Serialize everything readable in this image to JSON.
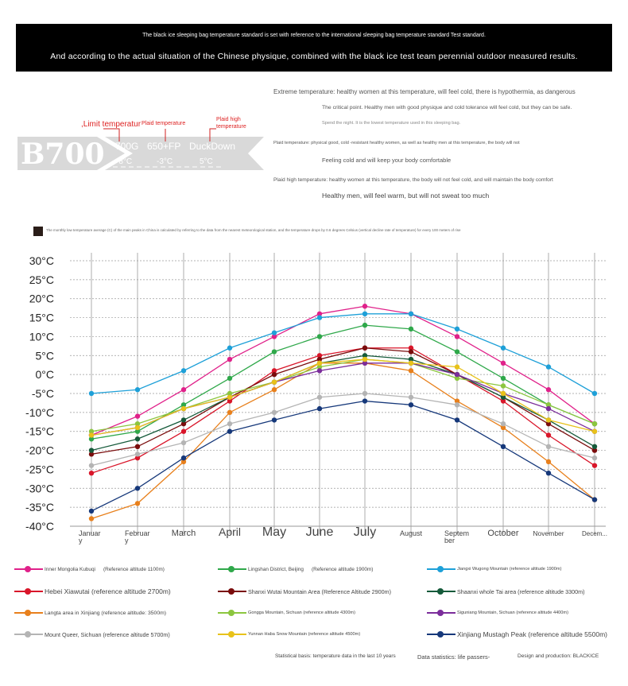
{
  "banner": {
    "line1": "The black ice sleeping bag temperature standard is set with reference to the international sleeping bag temperature standard Test standard.",
    "line2": "And according to the actual situation of the Chinese physique, combined with the black ice test team perennial outdoor measured results."
  },
  "product": {
    "model": "B700",
    "fill": "700G",
    "fill_power": "650+FP",
    "material": "DuckDown",
    "limit_label": ",Limit temperatur",
    "plaid_label": "Plaid temperature",
    "plaid_high_label": "Plaid high temperature",
    "limit_temp": "-8°C",
    "plaid_temp": "-3°C",
    "plaid_high_temp": "5°C",
    "accent_color": "#d22222"
  },
  "descriptions": {
    "extreme_1": "Extreme temperature: healthy women at this temperature, will feel cold, there is hypothermia, as dangerous",
    "extreme_2": "The critical point. Healthy men with good physique and cold tolerance will feel cold, but they can be safe.",
    "extreme_3": "Spend the night. It is the lowest temperature used in this sleeping bag.",
    "plaid_1": "Plaid temperature: physical good, cold -resistant healthy women, as well as healthy men at this temperature, the body will not",
    "plaid_2": "Feeling cold and will keep your body comfortable",
    "high_1": "Plaid high temperature: healthy women at this temperature, the body will not feel cold, and will maintain the body comfort",
    "high_2": "Healthy men, will feel warm, but will not sweat too much"
  },
  "note": "The monthly low temperature average (C) of the main peaks in China is calculated by referring to the data from the nearest meteorological station, and the temperature drops by 0.6 degrees Celsius (vertical decline rate of temperature) for every 100 meters of rise",
  "chart_data": {
    "type": "line",
    "categories": [
      "Januar y",
      "Februar y",
      "March",
      "April",
      "May",
      "June",
      "July",
      "August",
      "Septem ber",
      "October",
      "November",
      "Decem..."
    ],
    "yticks": [
      "30°C",
      "25°C",
      "20°C",
      "15°C",
      "10°C",
      "5°C",
      "0°C",
      "-5°C",
      "-10°C",
      "-15°C",
      "-20°C",
      "-25°C",
      "-30°C",
      "-35°C",
      "-40°C"
    ],
    "ylim": [
      -40,
      30
    ],
    "grid": true,
    "legend_position": "bottom",
    "series": [
      {
        "name": "Inner Mongolia Kubuqi",
        "alt": "(Reference altitude 1100m)",
        "color": "#e0218a",
        "values": [
          -16,
          -11,
          -4,
          4,
          10,
          16,
          18,
          16,
          10,
          3,
          -4,
          -13
        ]
      },
      {
        "name": "Lingshan District, Beijing",
        "alt": "(Reference altitude 1900m)",
        "color": "#2fa84a",
        "values": [
          -17,
          -15,
          -8,
          -1,
          6,
          10,
          13,
          12,
          6,
          -1,
          -8,
          -13
        ]
      },
      {
        "name": "Jiangxi Wugong Mountain (reference altitude 1900m)",
        "alt": "",
        "color": "#1ea0d8",
        "values": [
          -5,
          -4,
          1,
          7,
          11,
          15,
          16,
          16,
          12,
          7,
          2,
          -5
        ]
      },
      {
        "name": "Hebei Xiawutai (reference altitude 2700m)",
        "alt": "",
        "color": "#d9162a",
        "values": [
          -26,
          -22,
          -15,
          -7,
          1,
          5,
          7,
          7,
          0,
          -7,
          -16,
          -24
        ]
      },
      {
        "name": "Shanxi Wutai Mountain Area (Reference Altitude 2900m)",
        "alt": "",
        "color": "#7a0c0c",
        "values": [
          -21,
          -19,
          -13,
          -6,
          0,
          4,
          7,
          6,
          0,
          -6,
          -13,
          -20
        ]
      },
      {
        "name": "Shaanxi whole Tai area (reference altitude 3300m)",
        "alt": "",
        "color": "#155a3a",
        "values": [
          -20,
          -17,
          -12,
          -6,
          -2,
          3,
          5,
          4,
          0,
          -6,
          -12,
          -19
        ]
      },
      {
        "name": "Langta area in Xinjiang (reference altitude: 3500m)",
        "alt": "",
        "color": "#e8801c",
        "values": [
          -38,
          -34,
          -23,
          -10,
          -4,
          3,
          3,
          1,
          -7,
          -14,
          -23,
          -33
        ]
      },
      {
        "name": "Gongga Mountain, Sichuan (reference altitude 4300m)",
        "alt": "",
        "color": "#8cc63f",
        "values": [
          -15,
          -13,
          -9,
          -5,
          -2,
          2,
          4,
          3,
          -1,
          -3,
          -8,
          -13
        ]
      },
      {
        "name": "Siguniang Mountain, Sichuan (reference altitude 4400m)",
        "alt": "",
        "color": "#7b2d9b",
        "values": [
          -16,
          -14,
          -9,
          -6,
          -2,
          1,
          3,
          3,
          0,
          -5,
          -9,
          -15
        ]
      },
      {
        "name": "Mount Queer, Sichuan (reference altitude 5700m)",
        "alt": "",
        "color": "#b4b4b4",
        "values": [
          -24,
          -21,
          -18,
          -13,
          -10,
          -6,
          -5,
          -6,
          -8,
          -13,
          -19,
          -22
        ]
      },
      {
        "name": "Yunnan Haba Snow Mountain (reference altitude 4500m)",
        "alt": "",
        "color": "#e8c21a",
        "values": [
          -16,
          -14,
          -9,
          -6,
          -2,
          3,
          4,
          3,
          2,
          -5,
          -12,
          -15
        ]
      },
      {
        "name": "Xinjiang Mustagh Peak (reference altitude 5500m)",
        "alt": "",
        "color": "#16387a",
        "values": [
          -36,
          -30,
          -22,
          -15,
          -12,
          -9,
          -7,
          -8,
          -12,
          -19,
          -26,
          -33
        ]
      }
    ]
  },
  "footer": {
    "stats_basis": "Statistical basis: temperature data in the last 10 years",
    "data_stats": "Data statistics: life passers-",
    "design": "Design and production: BLACKICE"
  }
}
